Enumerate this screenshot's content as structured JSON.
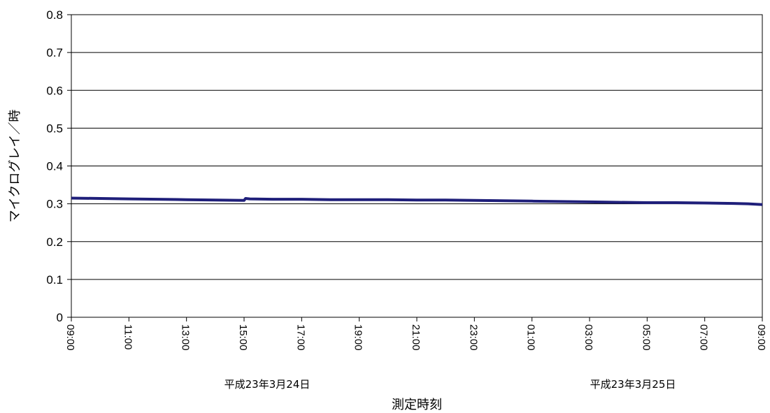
{
  "chart_data": {
    "type": "line",
    "xlabel": "測定時刻",
    "ylabel": "マイクログレイ／時",
    "ylim": [
      0,
      0.8
    ],
    "y_ticks": [
      "0",
      "0.1",
      "0.2",
      "0.3",
      "0.4",
      "0.5",
      "0.6",
      "0.7",
      "0.8"
    ],
    "x_ticks": [
      "09:00",
      "11:00",
      "13:00",
      "15:00",
      "17:00",
      "19:00",
      "21:00",
      "23:00",
      "01:00",
      "03:00",
      "05:00",
      "07:00",
      "09:00"
    ],
    "x_unit": "hours",
    "xlim": [
      0,
      24
    ],
    "date_labels": [
      "平成23年3月24日",
      "平成23年3月25日"
    ],
    "grid": "horizontal",
    "series": [
      {
        "color": "#1f1f7a",
        "x": [
          0,
          1,
          2,
          3,
          4,
          5,
          6,
          6.05,
          6.2,
          7,
          8,
          9,
          10,
          11,
          12,
          13,
          14,
          15,
          16,
          17,
          18,
          19,
          20,
          21,
          22,
          23,
          23.5,
          24
        ],
        "y": [
          0.315,
          0.314,
          0.313,
          0.312,
          0.311,
          0.31,
          0.309,
          0.314,
          0.313,
          0.312,
          0.312,
          0.311,
          0.311,
          0.311,
          0.31,
          0.31,
          0.309,
          0.308,
          0.307,
          0.306,
          0.305,
          0.304,
          0.303,
          0.303,
          0.302,
          0.301,
          0.3,
          0.298
        ]
      }
    ]
  }
}
